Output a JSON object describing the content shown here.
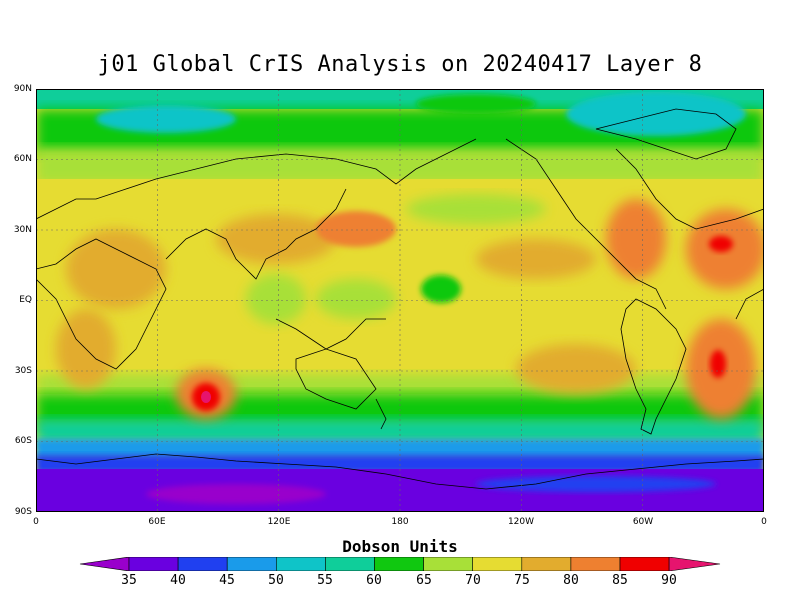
{
  "title": "j01 Global CrIS Analysis on 20240417 Layer 8",
  "colorbar": {
    "title": "Dobson Units",
    "levels": [
      "35",
      "40",
      "45",
      "50",
      "55",
      "60",
      "65",
      "70",
      "75",
      "80",
      "85",
      "90"
    ],
    "colors": [
      "#9900cc",
      "#6a00e0",
      "#2040f0",
      "#1a9bea",
      "#0fc4c8",
      "#0fce9a",
      "#10c810",
      "#a8e038",
      "#e6dc32",
      "#e2ac2e",
      "#ee8030",
      "#f00000",
      "#e6146e"
    ]
  },
  "axes": {
    "lat_ticks": [
      "90N",
      "60N",
      "30N",
      "EQ",
      "30S",
      "60S",
      "90S"
    ],
    "lon_ticks": [
      "0",
      "60E",
      "120E",
      "180",
      "120W",
      "60W",
      "0"
    ]
  },
  "map": {
    "variable": "ozone",
    "units": "Dobson Units",
    "projection": "equirectangular",
    "lon_range": [
      0,
      360
    ],
    "lat_range": [
      -90,
      90
    ],
    "gridlines": "dotted at 30 degree intervals",
    "features": [
      {
        "name": "antarctic-low",
        "value_range": [
          35,
          45
        ],
        "region": "south of 70S"
      },
      {
        "name": "southern-ocean-band",
        "value_range": [
          45,
          55
        ],
        "region": "60S to 70S"
      },
      {
        "name": "indian-ocean-max",
        "value_range": [
          85,
          90
        ],
        "region": "near 75E 40S"
      },
      {
        "name": "south-atlantic-max",
        "value_range": [
          85,
          90
        ],
        "region": "near 20W 30S"
      },
      {
        "name": "north-atlantic-max",
        "value_range": [
          85,
          90
        ],
        "region": "near 20W 30N"
      },
      {
        "name": "arctic-band",
        "value_range": [
          55,
          65
        ],
        "region": "north of 60N"
      }
    ]
  }
}
